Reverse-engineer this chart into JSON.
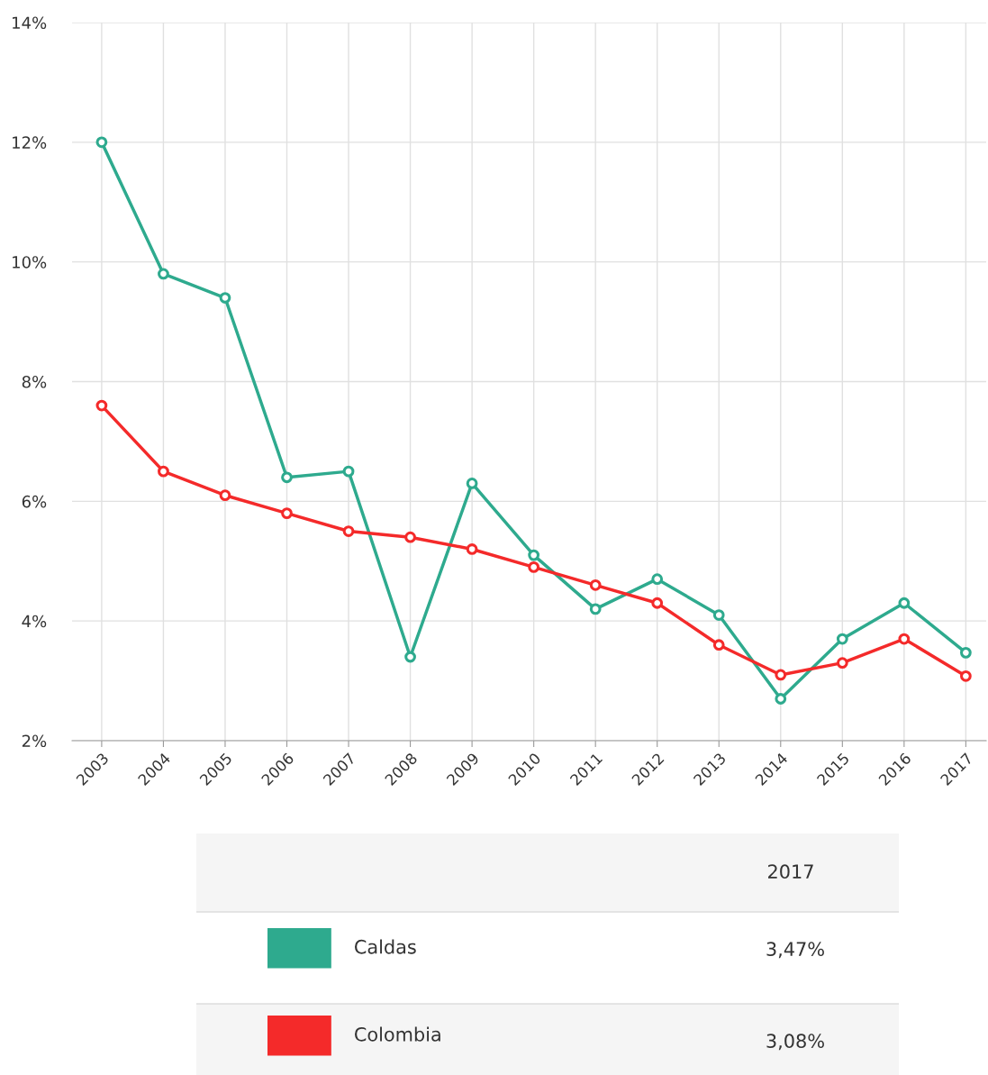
{
  "chart_data": {
    "type": "line",
    "categories": [
      "2003",
      "2004",
      "2005",
      "2006",
      "2007",
      "2008",
      "2009",
      "2010",
      "2011",
      "2012",
      "2013",
      "2014",
      "2015",
      "2016",
      "2017"
    ],
    "series": [
      {
        "name": "Caldas",
        "color": "#2eaa8e",
        "values": [
          12.0,
          9.8,
          9.4,
          6.4,
          6.5,
          3.4,
          6.3,
          5.1,
          4.2,
          4.7,
          4.1,
          2.7,
          3.7,
          4.3,
          3.47
        ]
      },
      {
        "name": "Colombia",
        "color": "#f42a2a",
        "values": [
          7.6,
          6.5,
          6.1,
          5.8,
          5.5,
          5.4,
          5.2,
          4.9,
          4.6,
          4.3,
          3.6,
          3.1,
          3.3,
          3.7,
          3.08
        ]
      }
    ],
    "annotations": [
      "2017",
      "3,47%",
      "3,08%"
    ],
    "ylim": [
      2,
      14
    ],
    "yticks": [
      {
        "value": 2,
        "label": "2%"
      },
      {
        "value": 4,
        "label": "4%"
      },
      {
        "value": 6,
        "label": "6%"
      },
      {
        "value": 8,
        "label": "8%"
      },
      {
        "value": 10,
        "label": "10%"
      },
      {
        "value": 12,
        "label": "12%"
      },
      {
        "value": 14,
        "label": "14%"
      }
    ],
    "grid": true,
    "legend": "bottom",
    "marker": "circle",
    "line_style": "solid"
  }
}
